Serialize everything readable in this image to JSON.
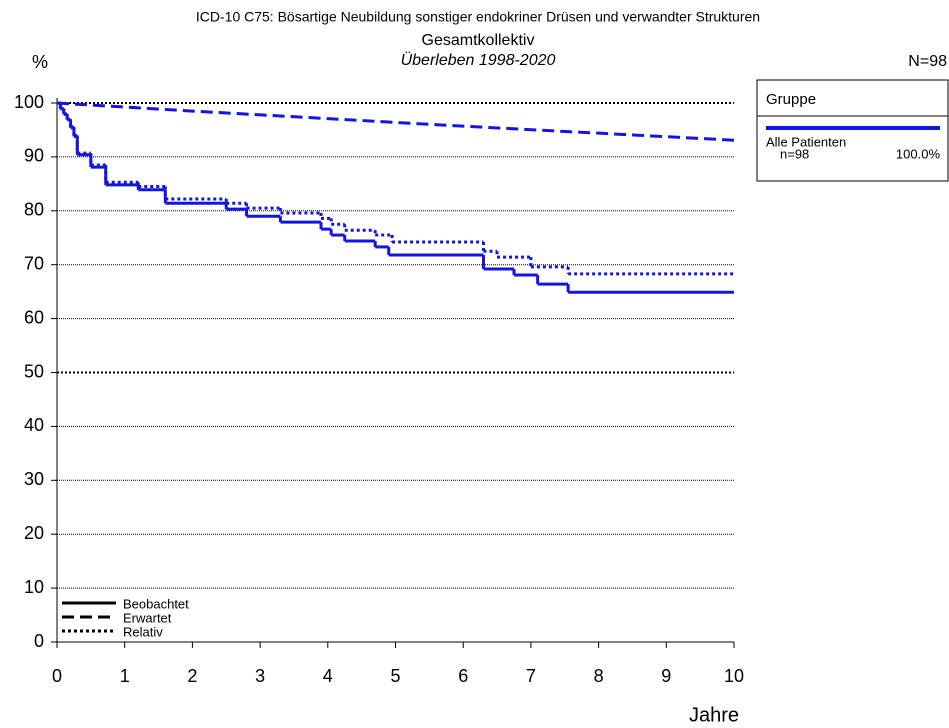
{
  "chart_data": {
    "type": "survival",
    "title": "ICD-10 C75: Bösartige Neubildung sonstiger endokriner Drüsen und verwandter Strukturen",
    "subtitle": "Gesamtkollektiv",
    "period": "Überleben 1998-2020",
    "y_label": "%",
    "x_label": "Jahre",
    "n_total": "N=98",
    "xlim": [
      0,
      10
    ],
    "xticks": [
      0,
      1,
      2,
      3,
      4,
      5,
      6,
      7,
      8,
      9,
      10
    ],
    "ylim": [
      0,
      100
    ],
    "yticks": [
      0,
      10,
      20,
      30,
      40,
      50,
      60,
      70,
      80,
      90,
      100
    ],
    "grid": true,
    "heavy_gridlines": [
      50,
      100
    ],
    "series": [
      {
        "name": "Beobachtet",
        "color": "#1414e0",
        "style": "solid",
        "step": true,
        "x": [
          0,
          0.05,
          0.1,
          0.15,
          0.2,
          0.25,
          0.3,
          0.5,
          0.72,
          1.2,
          1.6,
          2.5,
          2.8,
          3.3,
          3.9,
          4.05,
          4.25,
          4.7,
          4.9,
          6.3,
          6.75,
          7.1,
          7.55,
          10
        ],
        "values": [
          100,
          98.9,
          97.9,
          96.9,
          95.4,
          93.8,
          90.4,
          88.1,
          84.8,
          83.9,
          81.4,
          80.3,
          79.0,
          77.9,
          76.6,
          75.5,
          74.4,
          73.3,
          71.8,
          69.2,
          68.1,
          66.4,
          64.9,
          64.9
        ]
      },
      {
        "name": "Erwartet",
        "color": "#1414e0",
        "style": "dashed",
        "step": false,
        "x": [
          0,
          2,
          4,
          6,
          8,
          10
        ],
        "values": [
          100,
          98.5,
          97.1,
          95.7,
          94.4,
          93.1
        ]
      },
      {
        "name": "Relativ",
        "color": "#1414e0",
        "style": "dotted",
        "step": true,
        "x": [
          0,
          0.05,
          0.1,
          0.15,
          0.2,
          0.25,
          0.3,
          0.5,
          0.72,
          1.2,
          1.6,
          2.5,
          2.8,
          3.3,
          3.9,
          4.05,
          4.25,
          4.7,
          4.95,
          6.3,
          6.5,
          7.0,
          7.55,
          10
        ],
        "values": [
          100,
          99.0,
          98.0,
          97.0,
          95.6,
          94.0,
          90.7,
          88.5,
          85.3,
          84.5,
          82.2,
          81.4,
          80.5,
          79.6,
          78.6,
          77.5,
          76.4,
          75.5,
          74.2,
          72.5,
          71.4,
          69.6,
          68.3,
          68.3
        ]
      }
    ],
    "group_legend": {
      "title": "Gruppe",
      "label": "Alle Patienten",
      "n": "n=98",
      "percent": "100.0%",
      "color": "#1414e0"
    }
  }
}
